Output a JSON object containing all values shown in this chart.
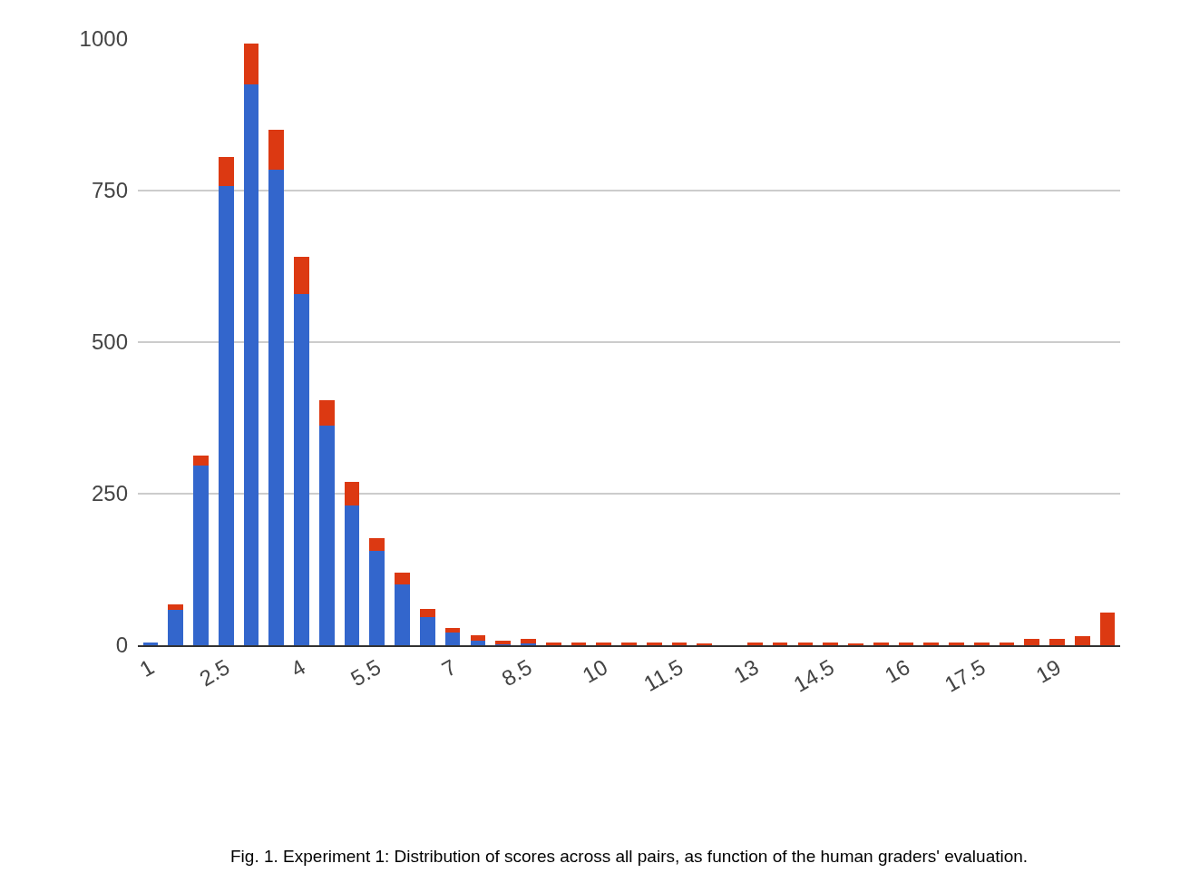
{
  "chart_data": {
    "type": "bar",
    "stacked": true,
    "categories": [
      "1",
      null,
      null,
      "2.5",
      null,
      null,
      "4",
      null,
      null,
      "5.5",
      null,
      null,
      "7",
      null,
      null,
      "8.5",
      null,
      null,
      "10",
      null,
      null,
      "11.5",
      null,
      null,
      "13",
      null,
      null,
      "14.5",
      null,
      null,
      "16",
      null,
      null,
      "17.5",
      null,
      null,
      "19",
      null,
      null
    ],
    "series": [
      {
        "color": "#3366cc",
        "values": [
          5,
          59,
          297,
          758,
          925,
          785,
          580,
          362,
          230,
          156,
          100,
          47,
          21,
          7,
          2,
          3,
          0,
          0,
          0,
          0,
          0,
          0,
          0,
          0,
          0,
          0,
          0,
          0,
          0,
          0,
          0,
          0,
          0,
          0,
          0,
          0,
          0,
          0,
          0
        ]
      },
      {
        "color": "#dc3912",
        "values": [
          0,
          9,
          16,
          47,
          68,
          65,
          61,
          42,
          39,
          21,
          20,
          13,
          8,
          9,
          6,
          7,
          5,
          5,
          5,
          4,
          5,
          4,
          3,
          0,
          5,
          5,
          5,
          5,
          2,
          5,
          5,
          5,
          5,
          5,
          5,
          10,
          10,
          15,
          54
        ]
      }
    ],
    "ylim": [
      0,
      1000
    ],
    "yticks": [
      0,
      250,
      500,
      750,
      1000
    ],
    "grid": "y",
    "annotations": [
      "Fig. 1. Experiment 1: Distribution of scores across all pairs, as function of the human graders' evaluation."
    ]
  }
}
